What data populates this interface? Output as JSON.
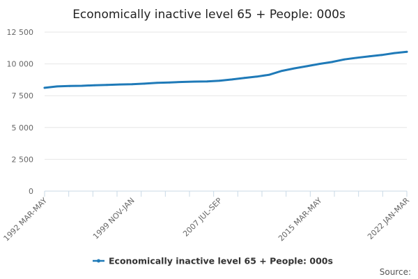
{
  "chart_data": {
    "type": "line",
    "title": "Economically inactive level 65 + People: 000s",
    "xlabel": "",
    "ylabel": "",
    "ylim": [
      0,
      12500
    ],
    "yticks": [
      0,
      2500,
      5000,
      7500,
      10000,
      12500
    ],
    "ytick_labels": [
      "0",
      "2 500",
      "5 000",
      "7 500",
      "10 000",
      "12 500"
    ],
    "xtick_labels": [
      "1992 MAR-MAY",
      "1999 NOV-JAN",
      "2007 JUL-SEP",
      "2015 MAR-MAY",
      "2022 JAN-MAR"
    ],
    "grid": true,
    "legend": "bottom",
    "series": [
      {
        "name": "Economically inactive level 65 + People: 000s",
        "color": "#1f7ab8",
        "x": [
          "1992 MAR-MAY",
          "1993 MAR-MAY",
          "1994 MAR-MAY",
          "1995 MAR-MAY",
          "1996 MAR-MAY",
          "1997 MAR-MAY",
          "1998 MAR-MAY",
          "1999 NOV-JAN",
          "2001 MAR-MAY",
          "2002 MAR-MAY",
          "2003 MAR-MAY",
          "2004 MAR-MAY",
          "2005 MAR-MAY",
          "2006 MAR-MAY",
          "2007 JUL-SEP",
          "2008 MAR-MAY",
          "2009 MAR-MAY",
          "2010 MAR-MAY",
          "2011 MAR-MAY",
          "2012 MAR-MAY",
          "2013 MAR-MAY",
          "2014 MAR-MAY",
          "2015 MAR-MAY",
          "2016 MAR-MAY",
          "2017 MAR-MAY",
          "2018 MAR-MAY",
          "2019 MAR-MAY",
          "2020 MAR-MAY",
          "2021 MAR-MAY",
          "2022 JAN-MAR"
        ],
        "values": [
          8120,
          8230,
          8260,
          8280,
          8320,
          8350,
          8380,
          8400,
          8450,
          8510,
          8540,
          8580,
          8610,
          8620,
          8680,
          8780,
          8900,
          9000,
          9150,
          9450,
          9650,
          9820,
          10000,
          10150,
          10350,
          10480,
          10600,
          10700,
          10850,
          10950
        ]
      }
    ],
    "source_label": "Source:"
  }
}
